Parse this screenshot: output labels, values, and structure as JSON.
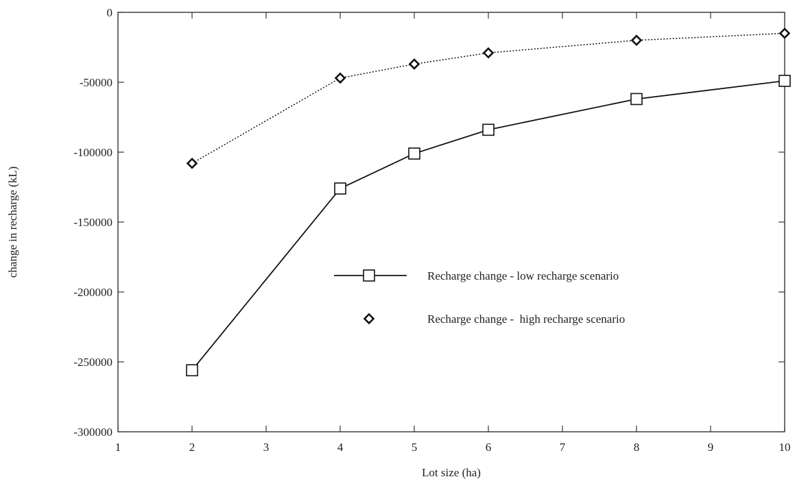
{
  "chart_data": {
    "type": "line",
    "title": "",
    "xlabel": "Lot size (ha)",
    "ylabel": "change in recharge (kL)",
    "xlim": [
      1,
      10
    ],
    "ylim": [
      -300000,
      0
    ],
    "x_ticks": [
      1,
      2,
      3,
      4,
      5,
      6,
      7,
      8,
      9,
      10
    ],
    "y_ticks": [
      0,
      -50000,
      -100000,
      -150000,
      -200000,
      -250000,
      -300000
    ],
    "x_tick_labels": [
      "1",
      "2",
      "3",
      "4",
      "5",
      "6",
      "7",
      "8",
      "9",
      "10"
    ],
    "y_tick_labels": [
      "0",
      "-50000",
      "-100000",
      "-150000",
      "-200000",
      "-250000",
      "-300000"
    ],
    "grid": false,
    "legend_position": "center-right",
    "series": [
      {
        "name": "Recharge change - low recharge scenario",
        "marker": "square",
        "line": "solid",
        "color": "#111111",
        "x": [
          2,
          4,
          5,
          6,
          8,
          10
        ],
        "y": [
          -256000,
          -126000,
          -101000,
          -84000,
          -62000,
          -49000
        ]
      },
      {
        "name": "Recharge change -  high recharge scenario",
        "marker": "diamond",
        "line": "dotted",
        "color": "#111111",
        "x": [
          2,
          4,
          5,
          6,
          8,
          10
        ],
        "y": [
          -108000,
          -47000,
          -37000,
          -29000,
          -20000,
          -15000
        ]
      }
    ]
  }
}
